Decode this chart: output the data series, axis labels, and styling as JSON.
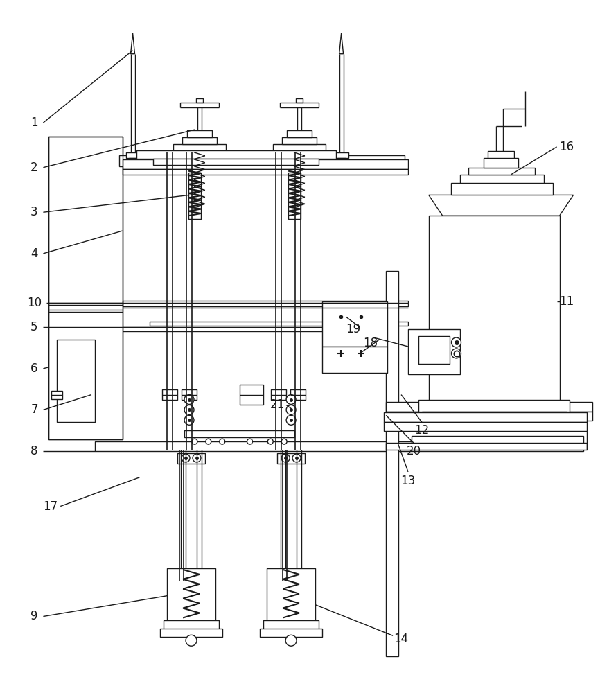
{
  "bg_color": "#ffffff",
  "lc": "#1a1a1a",
  "lw": 1.0,
  "figsize": [
    8.66,
    10.0
  ],
  "dpi": 100
}
